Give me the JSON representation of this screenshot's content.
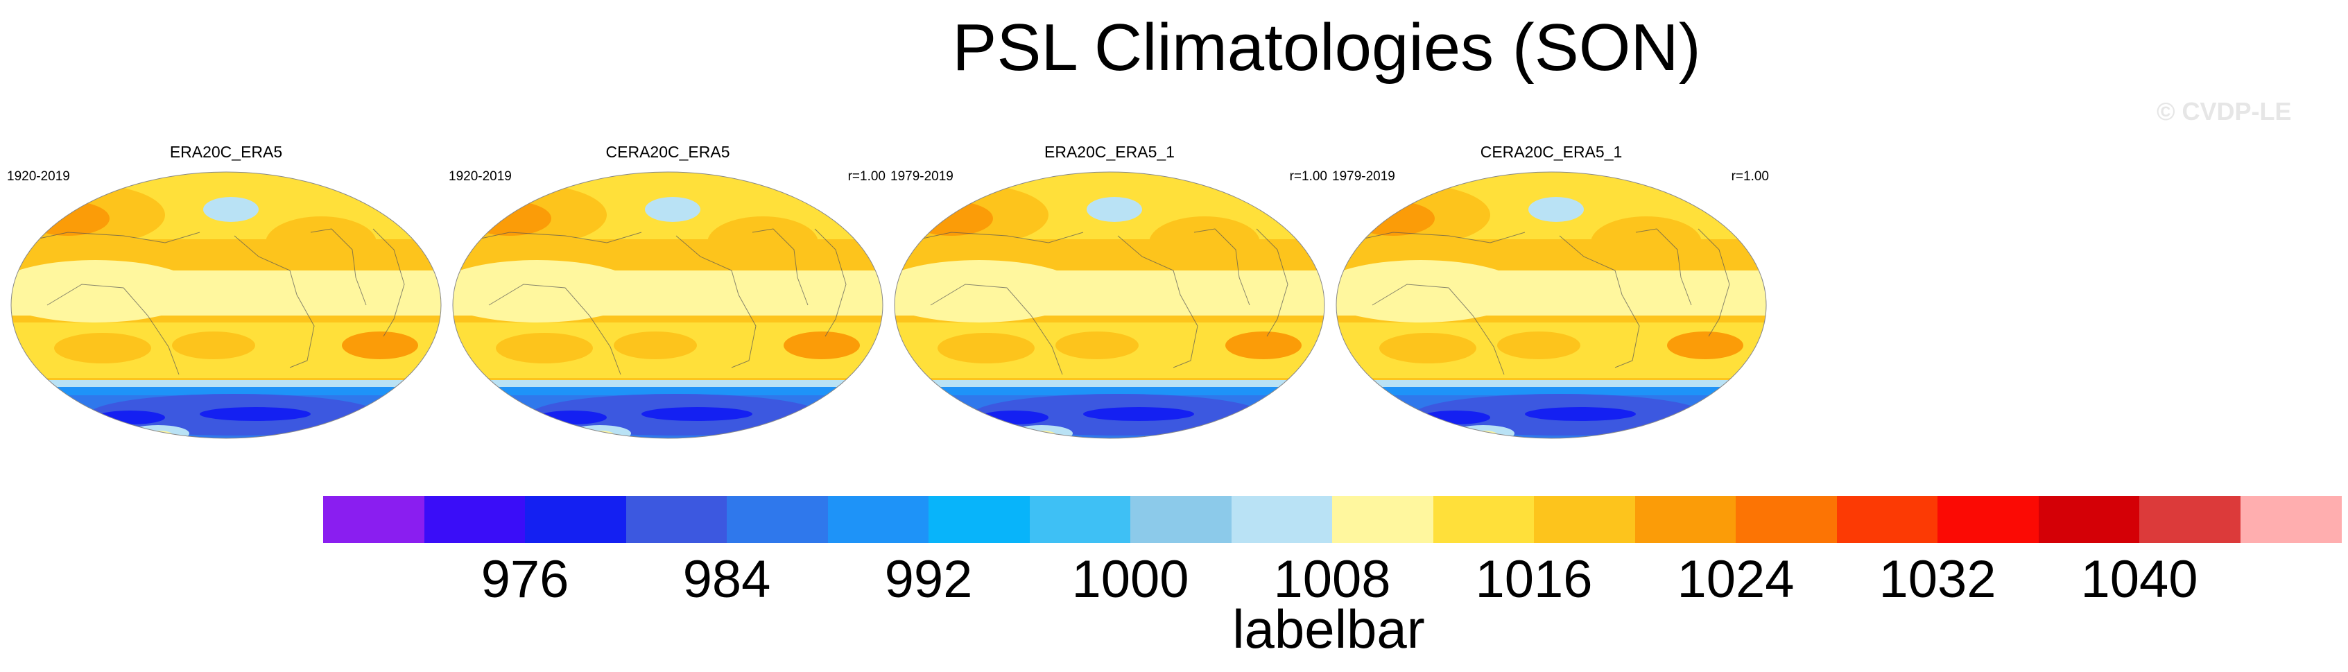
{
  "figure": {
    "title": "PSL Climatologies (SON)",
    "watermark": "© CVDP-LE"
  },
  "panels": [
    {
      "title": "ERA20C_ERA5",
      "period": "1920-2019",
      "correlation": ""
    },
    {
      "title": "CERA20C_ERA5",
      "period": "1920-2019",
      "correlation": "r=1.00"
    },
    {
      "title": "ERA20C_ERA5_1",
      "period": "1979-2019",
      "correlation": "r=1.00"
    },
    {
      "title": "CERA20C_ERA5_1",
      "period": "1979-2019",
      "correlation": "r=1.00"
    }
  ],
  "labelbar": {
    "caption": "labelbar",
    "ticks": [
      "976",
      "984",
      "992",
      "1000",
      "1008",
      "1016",
      "1024",
      "1032",
      "1040"
    ],
    "colors": [
      "#8a1ef0",
      "#3a0df8",
      "#1420f2",
      "#3c58e0",
      "#2f78ec",
      "#1e93f8",
      "#08b4fa",
      "#3ec0f5",
      "#8ccaea",
      "#b9e2f5",
      "#fff79e",
      "#ffe03a",
      "#fdc41c",
      "#fb9c08",
      "#fc7404",
      "#fc3a04",
      "#fb0a04",
      "#d40006",
      "#dc3a3a",
      "#ffaeaf"
    ]
  }
}
